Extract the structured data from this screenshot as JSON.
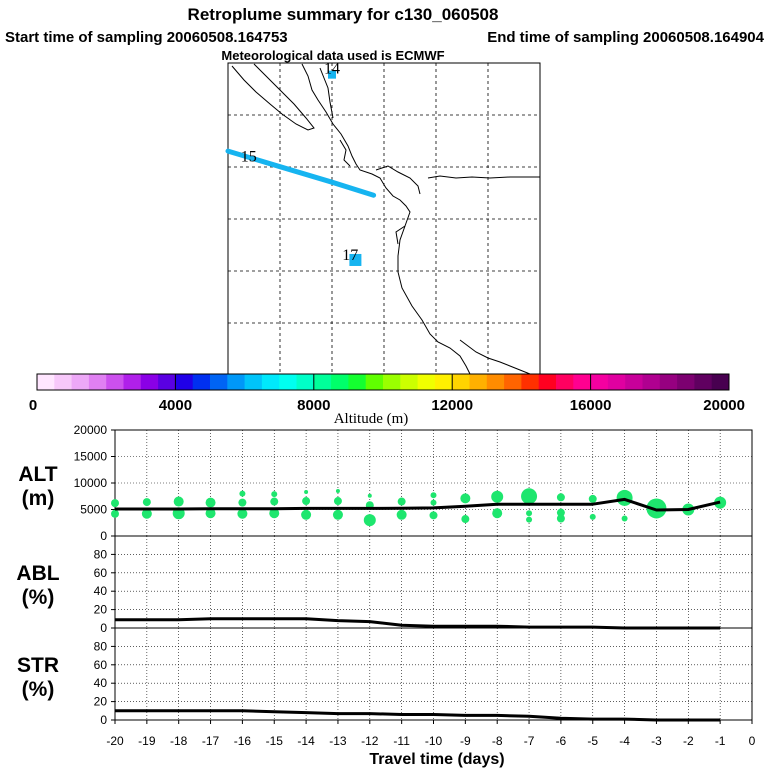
{
  "header": {
    "title": "Retroplume summary for c130_060508",
    "start_label": "Start time of sampling 20060508.164753",
    "end_label": "End time of sampling 20060508.164904",
    "met_label": "Meteorological data used is ECMWF"
  },
  "map": {
    "day_labels": [
      {
        "text": "14",
        "lon": -123.0,
        "lat": 49.6
      },
      {
        "text": "15",
        "lon": -126.2,
        "lat": 46.2
      },
      {
        "text": "17",
        "lon": -122.3,
        "lat": 42.4
      }
    ],
    "trajectory": [
      [
        -127.0,
        46.6
      ],
      [
        -125.0,
        46.0
      ],
      [
        -123.0,
        45.4
      ],
      [
        -121.4,
        44.9
      ]
    ],
    "markers": [
      {
        "lon": -123.0,
        "lat": 49.55,
        "size": 4
      },
      {
        "lon": -122.1,
        "lat": 42.4,
        "size": 6
      }
    ],
    "trajectory_color": "#16b4f0"
  },
  "colorbar": {
    "label": "Altitude (m)",
    "min": 0,
    "max": 20000,
    "tick_values": [
      0,
      4000,
      8000,
      12000,
      16000,
      20000
    ],
    "tick_labels": [
      "0",
      "4000",
      "8000",
      "12000",
      "16000",
      "20000"
    ],
    "colors": [
      "#ffe6ff",
      "#f7c8fa",
      "#eda8f7",
      "#e080f2",
      "#cc50ee",
      "#b020ea",
      "#8a00e6",
      "#5a00e2",
      "#2000e8",
      "#0030f0",
      "#0064f4",
      "#0098f8",
      "#00c4fa",
      "#00e8fc",
      "#00fff0",
      "#00ffc8",
      "#00ff9a",
      "#00ff6a",
      "#14ff30",
      "#60ff00",
      "#9aff00",
      "#ccff00",
      "#f0ff00",
      "#fff000",
      "#ffd400",
      "#ffb000",
      "#ff8c00",
      "#ff6400",
      "#ff3000",
      "#ff0020",
      "#ff0060",
      "#ff0090",
      "#f400a0",
      "#e000a0",
      "#c8009a",
      "#b00090",
      "#960080",
      "#7c0070",
      "#600060",
      "#480050"
    ]
  },
  "chart_data": [
    {
      "type": "line",
      "ylabel": "ALT",
      "ylabel_unit": "(m)",
      "ylim": [
        0,
        20000
      ],
      "y_ticks": [
        0,
        5000,
        10000,
        15000,
        20000
      ],
      "x": [
        -20,
        -19,
        -18,
        -17,
        -16,
        -15,
        -14,
        -13,
        -12,
        -11,
        -10,
        -9,
        -8,
        -7,
        -6,
        -5,
        -4,
        -3,
        -2,
        -1
      ],
      "series": [
        {
          "name": "mean altitude",
          "values": [
            5100,
            5100,
            5100,
            5150,
            5150,
            5150,
            5200,
            5200,
            5200,
            5250,
            5300,
            5600,
            6000,
            6000,
            6000,
            6000,
            6900,
            4900,
            5000,
            6400
          ]
        }
      ],
      "scatter": [
        {
          "x": -20,
          "y": 6200,
          "r": 4
        },
        {
          "x": -20,
          "y": 4200,
          "r": 4
        },
        {
          "x": -19,
          "y": 6400,
          "r": 4
        },
        {
          "x": -19,
          "y": 4200,
          "r": 5
        },
        {
          "x": -18,
          "y": 6500,
          "r": 5
        },
        {
          "x": -18,
          "y": 4300,
          "r": 6
        },
        {
          "x": -17,
          "y": 6300,
          "r": 5
        },
        {
          "x": -17,
          "y": 4300,
          "r": 5
        },
        {
          "x": -16,
          "y": 6300,
          "r": 4
        },
        {
          "x": -16,
          "y": 8000,
          "r": 3
        },
        {
          "x": -16,
          "y": 4200,
          "r": 5
        },
        {
          "x": -15,
          "y": 6500,
          "r": 4
        },
        {
          "x": -15,
          "y": 7900,
          "r": 3
        },
        {
          "x": -15,
          "y": 4300,
          "r": 5
        },
        {
          "x": -14,
          "y": 6600,
          "r": 4
        },
        {
          "x": -14,
          "y": 8300,
          "r": 2
        },
        {
          "x": -14,
          "y": 4000,
          "r": 5
        },
        {
          "x": -13,
          "y": 6600,
          "r": 4
        },
        {
          "x": -13,
          "y": 8500,
          "r": 2
        },
        {
          "x": -13,
          "y": 4000,
          "r": 5
        },
        {
          "x": -12,
          "y": 7600,
          "r": 2
        },
        {
          "x": -12,
          "y": 5800,
          "r": 4
        },
        {
          "x": -12,
          "y": 3000,
          "r": 6
        },
        {
          "x": -11,
          "y": 6500,
          "r": 4
        },
        {
          "x": -11,
          "y": 4000,
          "r": 5
        },
        {
          "x": -10,
          "y": 7700,
          "r": 3
        },
        {
          "x": -10,
          "y": 6300,
          "r": 3
        },
        {
          "x": -10,
          "y": 3900,
          "r": 4
        },
        {
          "x": -9,
          "y": 7100,
          "r": 5
        },
        {
          "x": -9,
          "y": 3200,
          "r": 4
        },
        {
          "x": -8,
          "y": 7400,
          "r": 6
        },
        {
          "x": -8,
          "y": 4300,
          "r": 5
        },
        {
          "x": -7,
          "y": 7500,
          "r": 8
        },
        {
          "x": -7,
          "y": 4300,
          "r": 3
        },
        {
          "x": -7,
          "y": 3100,
          "r": 3
        },
        {
          "x": -6,
          "y": 7300,
          "r": 4
        },
        {
          "x": -6,
          "y": 4400,
          "r": 4
        },
        {
          "x": -6,
          "y": 3300,
          "r": 4
        },
        {
          "x": -5,
          "y": 7000,
          "r": 4
        },
        {
          "x": -5,
          "y": 3600,
          "r": 3
        },
        {
          "x": -4,
          "y": 7200,
          "r": 8
        },
        {
          "x": -4,
          "y": 3300,
          "r": 3
        },
        {
          "x": -3,
          "y": 5200,
          "r": 10
        },
        {
          "x": -2,
          "y": 5000,
          "r": 6
        },
        {
          "x": -1,
          "y": 6300,
          "r": 6
        }
      ],
      "scatter_color": "#1ee66e"
    },
    {
      "type": "line",
      "ylabel": "ABL",
      "ylabel_unit": "(%)",
      "ylim": [
        0,
        100
      ],
      "y_ticks": [
        0,
        20,
        40,
        60,
        80
      ],
      "x": [
        -20,
        -19,
        -18,
        -17,
        -16,
        -15,
        -14,
        -13,
        -12,
        -11,
        -10,
        -9,
        -8,
        -7,
        -6,
        -5,
        -4,
        -3,
        -2,
        -1
      ],
      "series": [
        {
          "name": "ABL fraction",
          "values": [
            9,
            9,
            9,
            10,
            10,
            10,
            10,
            8,
            7,
            3,
            2,
            2,
            2,
            1,
            1,
            1,
            0,
            0,
            0,
            0
          ]
        }
      ]
    },
    {
      "type": "line",
      "ylabel": "STR",
      "ylabel_unit": "(%)",
      "ylim": [
        0,
        100
      ],
      "y_ticks": [
        0,
        20,
        40,
        60,
        80
      ],
      "x": [
        -20,
        -19,
        -18,
        -17,
        -16,
        -15,
        -14,
        -13,
        -12,
        -11,
        -10,
        -9,
        -8,
        -7,
        -6,
        -5,
        -4,
        -3,
        -2,
        -1
      ],
      "series": [
        {
          "name": "STR fraction",
          "values": [
            10,
            10,
            10,
            10,
            10,
            9,
            8,
            7,
            7,
            6,
            6,
            5,
            5,
            4,
            2,
            1,
            1,
            0,
            0,
            0
          ]
        }
      ]
    }
  ],
  "x_axis": {
    "label": "Travel time (days)",
    "tick_values": [
      -20,
      -19,
      -18,
      -17,
      -16,
      -15,
      -14,
      -13,
      -12,
      -11,
      -10,
      -9,
      -8,
      -7,
      -6,
      -5,
      -4,
      -3,
      -2,
      -1,
      0
    ],
    "tick_labels": [
      "-20",
      "-19",
      "-18",
      "-17",
      "-16",
      "-15",
      "-14",
      "-13",
      "-12",
      "-11",
      "-10",
      "-9",
      "-8",
      "-7",
      "-6",
      "-5",
      "-4",
      "-3",
      "-2",
      "-1",
      "0"
    ],
    "xlim": [
      -20,
      0
    ]
  }
}
